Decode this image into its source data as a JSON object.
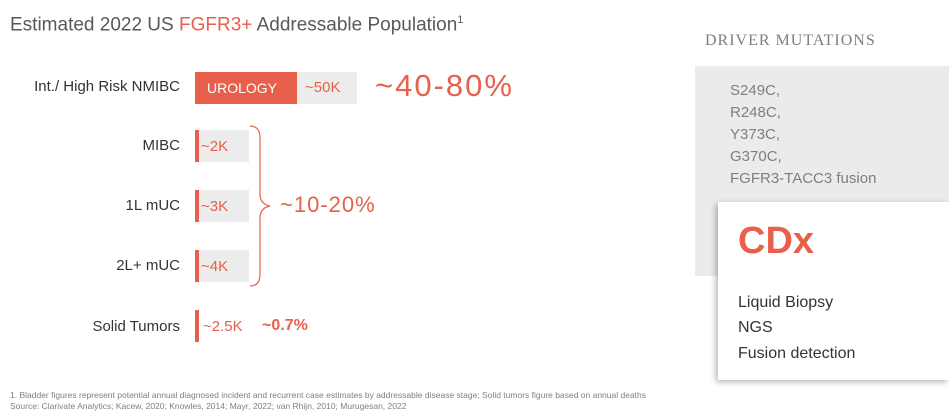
{
  "title": {
    "pre": "Estimated 2022 US ",
    "highlight": "FGFR3+",
    "post": " Addressable Population",
    "sup": "1"
  },
  "rows": [
    {
      "label": "Int./ High Risk NMIBC",
      "tag": "UROLOGY",
      "value": "~50K"
    },
    {
      "label": "MIBC",
      "value": "~2K"
    },
    {
      "label": "1L mUC",
      "value": "~3K"
    },
    {
      "label": "2L+ mUC",
      "value": "~4K"
    },
    {
      "label": "Solid Tumors",
      "value": "~2.5K",
      "share": "~0.7%"
    }
  ],
  "nmibc_share": "~40-80%",
  "bracket_share": "~10-20%",
  "driver_mutations": {
    "heading": "DRIVER MUTATIONS",
    "items": [
      "S249C,",
      "R248C,",
      "Y373C,",
      "G370C,",
      "FGFR3-TACC3 fusion"
    ]
  },
  "cdx": {
    "heading": "CDx",
    "items": [
      "Liquid Biopsy",
      "NGS",
      "Fusion detection"
    ]
  },
  "footnotes": [
    "1. Bladder figures represent potential annual diagnosed incident and recurrent case estimates by addressable disease stage; Solid tumors figure based on annual deaths",
    "Source: Clarivate Analytics; Kacew, 2020; Knowles, 2014; Mayr, 2022; van Rhijn, 2010; Murugesan, 2022"
  ]
}
